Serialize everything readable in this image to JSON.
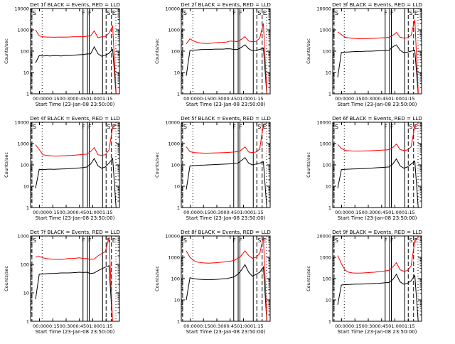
{
  "colors": {
    "events": "#000000",
    "lld": "#ff0000",
    "axes": "#000000",
    "background": "#ffffff"
  },
  "common": {
    "ylabel": "Counts/sec",
    "xlabel": "Start Time (23-Jan-08 23:50:00)",
    "y_ticks": [
      "1",
      "10",
      "100",
      "1000",
      "10000"
    ],
    "x_ticks": [
      "00:00",
      "00:15",
      "00:30",
      "00:45",
      "01:00",
      "01:15"
    ],
    "marker_labels": {
      "sunrise": "S",
      "flare": "F",
      "saa_start": "S",
      "eclipse": "E"
    }
  },
  "chart_data": [
    {
      "type": "line",
      "title": "Det 1f BLACK = Events, RED = LLD",
      "ylog": true,
      "ylim": [
        1,
        10000
      ],
      "series": [
        {
          "name": "Events",
          "values": [
            null,
            28,
            62,
            60,
            61,
            60,
            62,
            61,
            60,
            63,
            62,
            64,
            66,
            68,
            70,
            74,
            75,
            160,
            75,
            58,
            64,
            80,
            120,
            0
          ]
        },
        {
          "name": "LLD",
          "values": [
            null,
            1000,
            520,
            470,
            460,
            455,
            450,
            455,
            460,
            455,
            460,
            470,
            470,
            480,
            480,
            500,
            520,
            900,
            430,
            470,
            480,
            700,
            1500,
            0
          ]
        }
      ]
    },
    {
      "type": "line",
      "title": "Det 2f BLACK = Events, RED = LLD",
      "ylog": true,
      "ylim": [
        1,
        10000
      ],
      "series": [
        {
          "name": "Events",
          "values": [
            null,
            7,
            110,
            112,
            115,
            118,
            120,
            120,
            122,
            125,
            125,
            125,
            130,
            128,
            120,
            120,
            150,
            200,
            130,
            105,
            110,
            120,
            140,
            0
          ]
        },
        {
          "name": "LLD",
          "values": [
            null,
            220,
            380,
            300,
            260,
            240,
            230,
            230,
            240,
            250,
            255,
            260,
            270,
            300,
            290,
            280,
            360,
            480,
            300,
            280,
            290,
            400,
            2000,
            0
          ]
        }
      ]
    },
    {
      "type": "line",
      "title": "Det 3f BLACK = Events, RED = LLD",
      "ylog": true,
      "ylim": [
        1,
        10000
      ],
      "series": [
        {
          "name": "Events",
          "values": [
            null,
            6,
            88,
            90,
            92,
            95,
            96,
            97,
            98,
            100,
            100,
            102,
            104,
            106,
            108,
            110,
            160,
            200,
            110,
            85,
            90,
            100,
            110,
            0
          ]
        },
        {
          "name": "LLD",
          "values": [
            null,
            800,
            600,
            450,
            420,
            400,
            390,
            380,
            385,
            390,
            395,
            400,
            410,
            420,
            430,
            450,
            550,
            750,
            450,
            410,
            420,
            550,
            3000,
            0
          ]
        }
      ]
    },
    {
      "type": "line",
      "title": "Det 4f BLACK = Events, RED = LLD",
      "ylog": true,
      "ylim": [
        1,
        10000
      ],
      "series": [
        {
          "name": "Events",
          "values": [
            null,
            8,
            62,
            60,
            62,
            63,
            62,
            63,
            64,
            65,
            66,
            68,
            70,
            72,
            75,
            80,
            110,
            200,
            90,
            70,
            80,
            120,
            200,
            0
          ]
        },
        {
          "name": "LLD",
          "values": [
            null,
            900,
            520,
            300,
            280,
            270,
            260,
            260,
            265,
            270,
            275,
            280,
            290,
            300,
            310,
            320,
            420,
            650,
            300,
            280,
            300,
            500,
            6000,
            8000
          ]
        }
      ]
    },
    {
      "type": "line",
      "title": "Det 5f BLACK = Events, RED = LLD",
      "ylog": true,
      "ylim": [
        1,
        10000
      ],
      "series": [
        {
          "name": "Events",
          "values": [
            null,
            7,
            90,
            92,
            95,
            97,
            98,
            100,
            102,
            104,
            106,
            108,
            110,
            112,
            118,
            120,
            160,
            220,
            120,
            100,
            110,
            120,
            140,
            0
          ]
        },
        {
          "name": "LLD",
          "values": [
            null,
            700,
            420,
            380,
            370,
            360,
            355,
            355,
            360,
            365,
            370,
            375,
            380,
            390,
            400,
            420,
            500,
            700,
            400,
            380,
            400,
            550,
            8000,
            9000
          ]
        }
      ]
    },
    {
      "type": "line",
      "title": "Det 6f BLACK = Events, RED = LLD",
      "ylog": true,
      "ylim": [
        1,
        10000
      ],
      "series": [
        {
          "name": "Events",
          "values": [
            null,
            8,
            60,
            62,
            63,
            64,
            65,
            66,
            67,
            68,
            70,
            72,
            74,
            76,
            78,
            80,
            110,
            190,
            90,
            70,
            80,
            110,
            150,
            0
          ]
        },
        {
          "name": "LLD",
          "values": [
            null,
            900,
            600,
            480,
            460,
            450,
            445,
            445,
            450,
            455,
            460,
            470,
            480,
            490,
            500,
            520,
            650,
            950,
            520,
            480,
            500,
            700,
            7000,
            9000
          ]
        }
      ]
    },
    {
      "type": "line",
      "title": "Det 7f BLACK = Events, RED = LLD",
      "ylog": true,
      "ylim": [
        1,
        1000
      ],
      "series": [
        {
          "name": "Events",
          "values": [
            null,
            6,
            45,
            46,
            47,
            48,
            48,
            49,
            50,
            50,
            50,
            51,
            52,
            53,
            52,
            53,
            48,
            50,
            60,
            70,
            80,
            90,
            0,
            0
          ]
        },
        {
          "name": "LLD",
          "values": [
            null,
            180,
            190,
            170,
            160,
            155,
            150,
            150,
            150,
            155,
            160,
            160,
            165,
            170,
            160,
            160,
            150,
            155,
            200,
            240,
            280,
            900,
            0,
            0
          ]
        }
      ]
    },
    {
      "type": "line",
      "title": "Det 8f BLACK = Events, RED = LLD",
      "ylog": true,
      "ylim": [
        1,
        10000
      ],
      "series": [
        {
          "name": "Events",
          "values": [
            null,
            10,
            110,
            100,
            95,
            92,
            90,
            90,
            90,
            92,
            95,
            98,
            100,
            110,
            120,
            160,
            250,
            450,
            200,
            130,
            160,
            200,
            350,
            0
          ]
        },
        {
          "name": "LLD",
          "values": [
            null,
            2000,
            1000,
            700,
            600,
            560,
            540,
            530,
            540,
            560,
            580,
            600,
            620,
            660,
            700,
            900,
            1200,
            2000,
            1200,
            900,
            1000,
            1500,
            9000,
            0
          ]
        }
      ]
    },
    {
      "type": "line",
      "title": "Det 9f BLACK = Events, RED = LLD",
      "ylog": true,
      "ylim": [
        1,
        10000
      ],
      "series": [
        {
          "name": "Events",
          "values": [
            null,
            6,
            50,
            52,
            53,
            54,
            55,
            55,
            56,
            57,
            58,
            59,
            60,
            62,
            64,
            66,
            90,
            160,
            70,
            55,
            60,
            80,
            140,
            0
          ]
        },
        {
          "name": "LLD",
          "values": [
            null,
            1200,
            500,
            250,
            200,
            185,
            180,
            180,
            185,
            190,
            195,
            200,
            210,
            220,
            230,
            250,
            350,
            550,
            260,
            220,
            240,
            400,
            6000,
            9000
          ]
        }
      ]
    }
  ]
}
